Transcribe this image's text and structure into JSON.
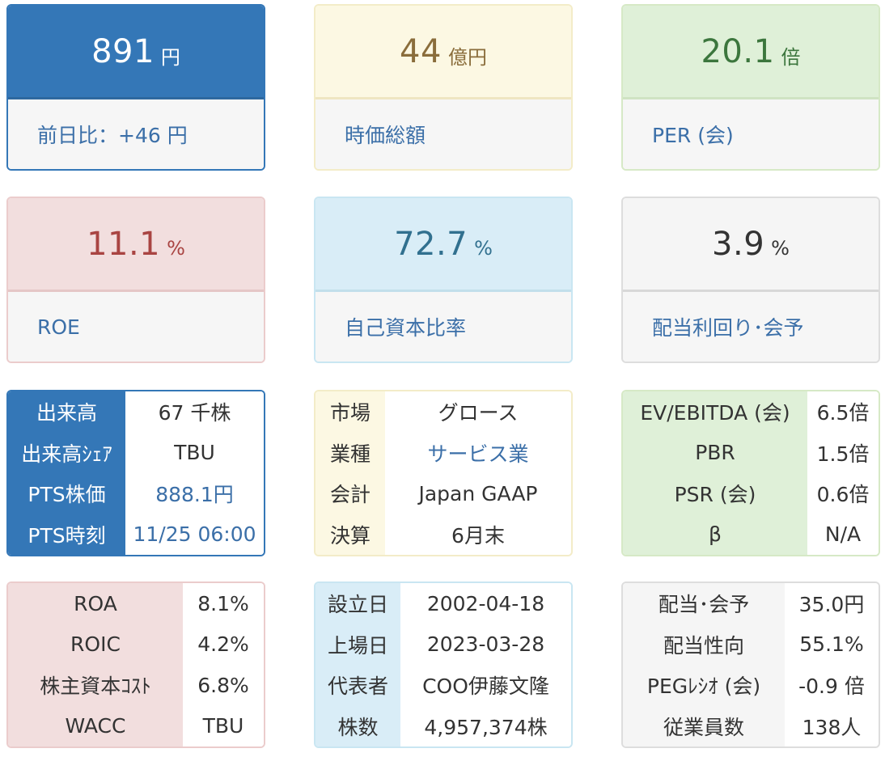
{
  "cards": [
    {
      "value": "891",
      "unit": "円",
      "label": "前日比：+46 円"
    },
    {
      "value": "44",
      "unit": "億円",
      "label": "時価総額"
    },
    {
      "value": "20.1",
      "unit": "倍",
      "label": "PER (会)"
    },
    {
      "value": "11.1",
      "unit": "%",
      "label": "ROE"
    },
    {
      "value": "72.7",
      "unit": "%",
      "label": "自己資本比率"
    },
    {
      "value": "3.9",
      "unit": "%",
      "label": "配当利回り･会予"
    }
  ],
  "trading": [
    {
      "k": "出来高",
      "v": "67 千株"
    },
    {
      "k": "出来高ｼｪｱ",
      "v": "TBU"
    },
    {
      "k": "PTS株価",
      "v": "888.1円"
    },
    {
      "k": "PTS時刻",
      "v": "11/25 06:00"
    }
  ],
  "profile": [
    {
      "k": "市場",
      "v": "グロース"
    },
    {
      "k": "業種",
      "v": "サービス業"
    },
    {
      "k": "会計",
      "v": "Japan GAAP"
    },
    {
      "k": "決算",
      "v": "6月末"
    }
  ],
  "valuation": [
    {
      "k": "EV/EBITDA (会)",
      "v": "6.5倍"
    },
    {
      "k": "PBR",
      "v": "1.5倍"
    },
    {
      "k": "PSR (会)",
      "v": "0.6倍"
    },
    {
      "k": "β",
      "v": "N/A"
    }
  ],
  "returns": [
    {
      "k": "ROA",
      "v": "8.1%"
    },
    {
      "k": "ROIC",
      "v": "4.2%"
    },
    {
      "k": "株主資本ｺｽﾄ",
      "v": "6.8%"
    },
    {
      "k": "WACC",
      "v": "TBU"
    }
  ],
  "company": [
    {
      "k": "設立日",
      "v": "2002-04-18"
    },
    {
      "k": "上場日",
      "v": "2023-03-28"
    },
    {
      "k": "代表者",
      "v": "COO伊藤文隆"
    },
    {
      "k": "株数",
      "v": "4,957,374株"
    }
  ],
  "dividend": [
    {
      "k": "配当･会予",
      "v": "35.0円"
    },
    {
      "k": "配当性向",
      "v": "55.1%"
    },
    {
      "k": "PEGﾚｼｵ (会)",
      "v": "-0.9 倍"
    },
    {
      "k": "従業員数",
      "v": "138人"
    }
  ]
}
